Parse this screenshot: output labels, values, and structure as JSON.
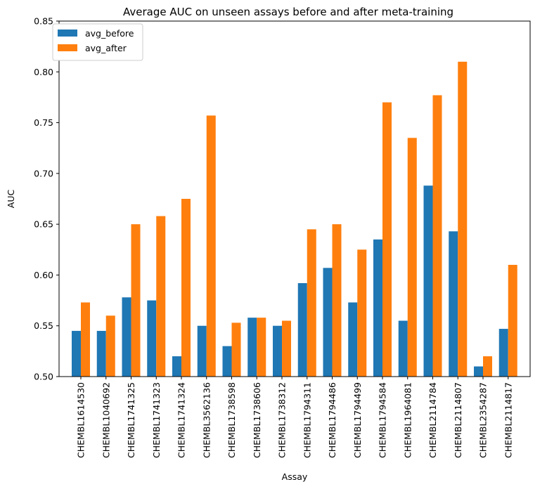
{
  "chart_data": {
    "type": "bar",
    "title": "Average AUC on unseen assays before and after meta-training",
    "xlabel": "Assay",
    "ylabel": "AUC",
    "ylim": [
      0.5,
      0.85
    ],
    "yticks": [
      "0.50",
      "0.55",
      "0.60",
      "0.65",
      "0.70",
      "0.75",
      "0.80",
      "0.85"
    ],
    "grid": false,
    "legend_position": "top-left",
    "categories": [
      "CHEMBL1614530",
      "CHEMBL1040692",
      "CHEMBL1741325",
      "CHEMBL1741323",
      "CHEMBL1741324",
      "CHEMBL3562136",
      "CHEMBL1738598",
      "CHEMBL1738606",
      "CHEMBL1738312",
      "CHEMBL1794311",
      "CHEMBL1794486",
      "CHEMBL1794499",
      "CHEMBL1794584",
      "CHEMBL1964081",
      "CHEMBL2114784",
      "CHEMBL2114807",
      "CHEMBL2354287",
      "CHEMBL2114817"
    ],
    "series": [
      {
        "name": "avg_before",
        "color": "#1f77b4",
        "values": [
          0.545,
          0.545,
          0.578,
          0.575,
          0.52,
          0.55,
          0.53,
          0.558,
          0.55,
          0.592,
          0.607,
          0.573,
          0.635,
          0.555,
          0.688,
          0.643,
          0.51,
          0.547
        ]
      },
      {
        "name": "avg_after",
        "color": "#ff7f0e",
        "values": [
          0.573,
          0.56,
          0.65,
          0.658,
          0.675,
          0.757,
          0.553,
          0.558,
          0.555,
          0.645,
          0.65,
          0.625,
          0.77,
          0.735,
          0.777,
          0.81,
          0.52,
          0.61
        ]
      }
    ]
  }
}
